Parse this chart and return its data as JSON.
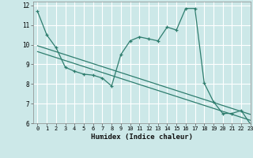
{
  "title": "",
  "xlabel": "Humidex (Indice chaleur)",
  "xlim": [
    -0.5,
    23
  ],
  "ylim": [
    6,
    12.2
  ],
  "yticks": [
    6,
    7,
    8,
    9,
    10,
    11,
    12
  ],
  "xticks": [
    0,
    1,
    2,
    3,
    4,
    5,
    6,
    7,
    8,
    9,
    10,
    11,
    12,
    13,
    14,
    15,
    16,
    17,
    18,
    19,
    20,
    21,
    22,
    23
  ],
  "bg_color": "#cce8e8",
  "grid_color": "#ffffff",
  "line_color": "#2e7d6e",
  "line1_x": [
    0,
    1,
    2,
    3,
    4,
    5,
    6,
    7,
    8,
    9,
    10,
    11,
    12,
    13,
    14,
    15,
    16,
    17,
    18,
    19,
    20,
    21,
    22,
    23
  ],
  "line1_y": [
    11.7,
    10.5,
    9.85,
    8.85,
    8.65,
    8.5,
    8.45,
    8.3,
    7.9,
    9.5,
    10.2,
    10.4,
    10.3,
    10.2,
    10.9,
    10.75,
    11.85,
    11.85,
    8.05,
    7.1,
    6.5,
    6.5,
    6.65,
    5.95
  ],
  "line2_x": [
    0,
    23
  ],
  "line2_y": [
    9.95,
    6.45
  ],
  "line3_x": [
    0,
    23
  ],
  "line3_y": [
    9.65,
    6.15
  ]
}
